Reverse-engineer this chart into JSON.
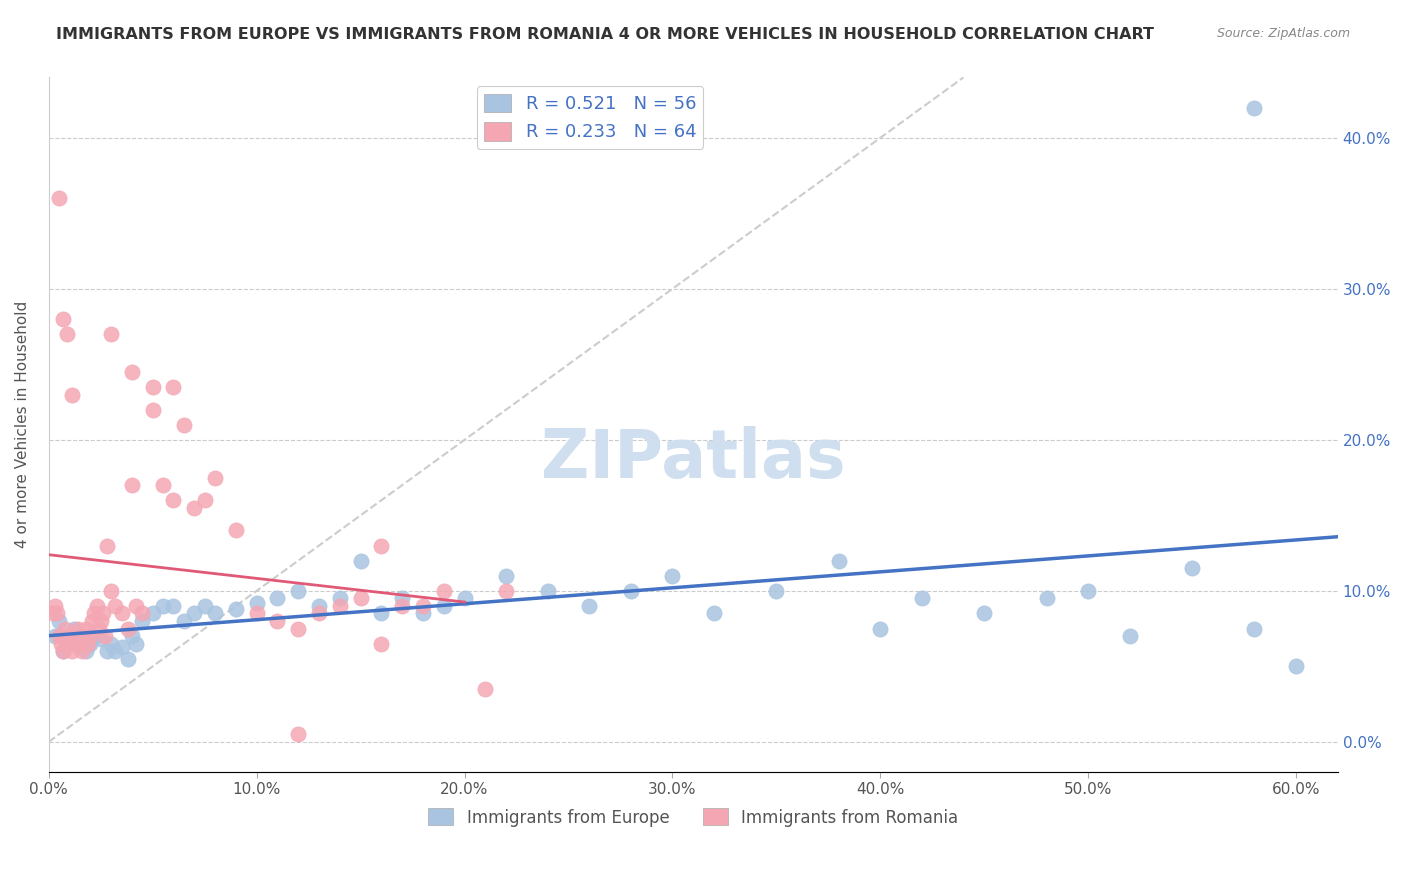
{
  "title": "IMMIGRANTS FROM EUROPE VS IMMIGRANTS FROM ROMANIA 4 OR MORE VEHICLES IN HOUSEHOLD CORRELATION CHART",
  "source": "Source: ZipAtlas.com",
  "ylabel": "4 or more Vehicles in Household",
  "xlabel_ticks": [
    "0.0%",
    "10.0%",
    "20.0%",
    "30.0%",
    "40.0%",
    "50.0%",
    "60.0%"
  ],
  "ylabel_ticks": [
    "0.0%",
    "10.0%",
    "20.0%",
    "30.0%",
    "40.0%",
    "40.0%"
  ],
  "xlim": [
    0.0,
    0.62
  ],
  "ylim": [
    -0.02,
    0.44
  ],
  "europe_color": "#a8c4e0",
  "europe_line_color": "#4472c4",
  "romania_color": "#f4a7b3",
  "romania_line_color": "#e05a78",
  "diagonal_color": "#cccccc",
  "europe_R": 0.521,
  "europe_N": 56,
  "romania_R": 0.233,
  "romania_N": 64,
  "europe_x": [
    0.003,
    0.005,
    0.007,
    0.008,
    0.01,
    0.012,
    0.015,
    0.018,
    0.02,
    0.022,
    0.025,
    0.028,
    0.03,
    0.032,
    0.035,
    0.038,
    0.04,
    0.042,
    0.045,
    0.05,
    0.055,
    0.06,
    0.065,
    0.07,
    0.075,
    0.08,
    0.09,
    0.1,
    0.11,
    0.12,
    0.13,
    0.14,
    0.15,
    0.16,
    0.17,
    0.18,
    0.19,
    0.2,
    0.22,
    0.24,
    0.26,
    0.28,
    0.3,
    0.32,
    0.35,
    0.38,
    0.4,
    0.42,
    0.45,
    0.48,
    0.5,
    0.52,
    0.55,
    0.58,
    0.6,
    0.58
  ],
  "europe_y": [
    0.07,
    0.08,
    0.06,
    0.07,
    0.065,
    0.075,
    0.07,
    0.06,
    0.065,
    0.07,
    0.068,
    0.06,
    0.065,
    0.06,
    0.063,
    0.055,
    0.07,
    0.065,
    0.08,
    0.085,
    0.09,
    0.09,
    0.08,
    0.085,
    0.09,
    0.085,
    0.088,
    0.092,
    0.095,
    0.1,
    0.09,
    0.095,
    0.12,
    0.085,
    0.095,
    0.085,
    0.09,
    0.095,
    0.11,
    0.1,
    0.09,
    0.1,
    0.11,
    0.085,
    0.1,
    0.12,
    0.075,
    0.095,
    0.085,
    0.095,
    0.1,
    0.07,
    0.115,
    0.075,
    0.05,
    0.42
  ],
  "romania_x": [
    0.002,
    0.003,
    0.004,
    0.005,
    0.006,
    0.007,
    0.008,
    0.009,
    0.01,
    0.011,
    0.012,
    0.013,
    0.014,
    0.015,
    0.016,
    0.017,
    0.018,
    0.019,
    0.02,
    0.021,
    0.022,
    0.023,
    0.024,
    0.025,
    0.026,
    0.027,
    0.028,
    0.03,
    0.032,
    0.035,
    0.038,
    0.04,
    0.042,
    0.045,
    0.05,
    0.055,
    0.06,
    0.065,
    0.07,
    0.075,
    0.08,
    0.09,
    0.1,
    0.11,
    0.12,
    0.13,
    0.14,
    0.15,
    0.16,
    0.17,
    0.18,
    0.19,
    0.21,
    0.22,
    0.12,
    0.16,
    0.03,
    0.04,
    0.05,
    0.06,
    0.005,
    0.007,
    0.009,
    0.011
  ],
  "romania_y": [
    0.085,
    0.09,
    0.085,
    0.07,
    0.065,
    0.06,
    0.075,
    0.065,
    0.07,
    0.06,
    0.065,
    0.07,
    0.075,
    0.065,
    0.06,
    0.07,
    0.075,
    0.065,
    0.07,
    0.08,
    0.085,
    0.09,
    0.075,
    0.08,
    0.085,
    0.07,
    0.13,
    0.1,
    0.09,
    0.085,
    0.075,
    0.17,
    0.09,
    0.085,
    0.22,
    0.17,
    0.235,
    0.21,
    0.155,
    0.16,
    0.175,
    0.14,
    0.085,
    0.08,
    0.075,
    0.085,
    0.09,
    0.095,
    0.13,
    0.09,
    0.09,
    0.1,
    0.035,
    0.1,
    0.005,
    0.065,
    0.27,
    0.245,
    0.235,
    0.16,
    0.36,
    0.28,
    0.27,
    0.23
  ],
  "watermark": "ZIPatlas",
  "watermark_color": "#d0dff0",
  "legend_label_europe": "R = 0.521   N = 56",
  "legend_label_romania": "R = 0.233   N = 64",
  "legend_label_europe_bottom": "Immigrants from Europe",
  "legend_label_romania_bottom": "Immigrants from Romania"
}
